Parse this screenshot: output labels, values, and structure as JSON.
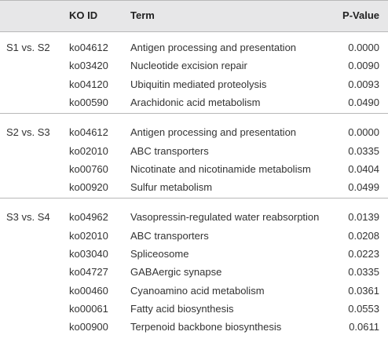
{
  "table": {
    "header": [
      "KO ID",
      "Term",
      "P-Value"
    ],
    "groups": [
      {
        "label": "S1 vs. S2",
        "rows": [
          [
            "ko04612",
            "Antigen processing and presentation",
            "0.0000"
          ],
          [
            "ko03420",
            "Nucleotide excision repair",
            "0.0090"
          ],
          [
            "ko04120",
            "Ubiquitin mediated proteolysis",
            "0.0093"
          ],
          [
            "ko00590",
            "Arachidonic acid metabolism",
            "0.0490"
          ]
        ]
      },
      {
        "label": "S2 vs. S3",
        "rows": [
          [
            "ko04612",
            "Antigen processing and presentation",
            "0.0000"
          ],
          [
            "ko02010",
            "ABC transporters",
            "0.0335"
          ],
          [
            "ko00760",
            "Nicotinate and nicotinamide metabolism",
            "0.0404"
          ],
          [
            "ko00920",
            "Sulfur metabolism",
            "0.0499"
          ]
        ]
      },
      {
        "label": "S3 vs. S4",
        "rows": [
          [
            "ko04962",
            "Vasopressin-regulated water reabsorption",
            "0.0139"
          ],
          [
            "ko02010",
            "ABC transporters",
            "0.0208"
          ],
          [
            "ko03040",
            "Spliceosome",
            "0.0223"
          ],
          [
            "ko04727",
            "GABAergic synapse",
            "0.0335"
          ],
          [
            "ko00460",
            "Cyanoamino acid metabolism",
            "0.0361"
          ],
          [
            "ko00061",
            "Fatty acid biosynthesis",
            "0.0553"
          ],
          [
            "ko00900",
            "Terpenoid backbone biosynthesis",
            "0.0611"
          ]
        ]
      }
    ]
  }
}
